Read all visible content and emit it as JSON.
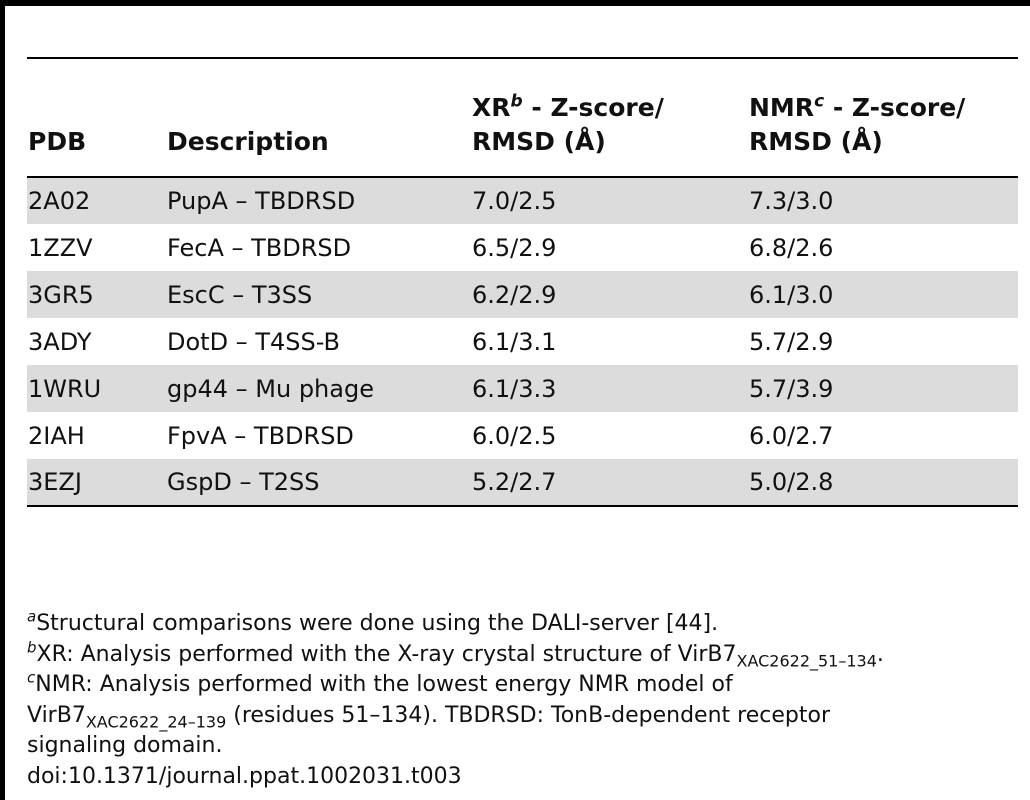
{
  "table": {
    "headers": {
      "pdb": "PDB",
      "description": "Description",
      "xr_main": "XR",
      "xr_sup": "b",
      "xr_rest": " - Z-score/",
      "xr_line2": "RMSD (Å)",
      "nmr_main": "NMR",
      "nmr_sup": "c",
      "nmr_rest": " - Z-score/",
      "nmr_line2": "RMSD (Å)"
    },
    "rows": [
      {
        "pdb": "2A02",
        "description": "PupA – TBDRSD",
        "xr": "7.0/2.5",
        "nmr": "7.3/3.0"
      },
      {
        "pdb": "1ZZV",
        "description": "FecA – TBDRSD",
        "xr": "6.5/2.9",
        "nmr": "6.8/2.6"
      },
      {
        "pdb": "3GR5",
        "description": "EscC – T3SS",
        "xr": "6.2/2.9",
        "nmr": "6.1/3.0"
      },
      {
        "pdb": "3ADY",
        "description": "DotD – T4SS-B",
        "xr": "6.1/3.1",
        "nmr": "5.7/2.9"
      },
      {
        "pdb": "1WRU",
        "description": "gp44 – Mu phage",
        "xr": "6.1/3.3",
        "nmr": "5.7/3.9"
      },
      {
        "pdb": "2IAH",
        "description": "FpvA – TBDRSD",
        "xr": "6.0/2.5",
        "nmr": "6.0/2.7"
      },
      {
        "pdb": "3EZJ",
        "description": "GspD – T2SS",
        "xr": "5.2/2.7",
        "nmr": "5.0/2.8"
      }
    ],
    "shade_color": "#dcdcdc"
  },
  "footnotes": {
    "a_mark": "a",
    "a_text": "Structural comparisons were done using the DALI-server [44].",
    "b_mark": "b",
    "b_text": "XR: Analysis performed with the X-ray crystal structure of VirB7",
    "b_sub": "XAC2622_51–134",
    "b_end": ".",
    "c_mark": "c",
    "c_text": "NMR: Analysis performed with the lowest energy NMR model of",
    "c_text2": "VirB7",
    "c_sub": "XAC2622_24–139",
    "c_text3": " (residues 51–134). TBDRSD: TonB-dependent receptor",
    "c_text4": "signaling domain.",
    "doi": "doi:10.1371/journal.ppat.1002031.t003"
  }
}
